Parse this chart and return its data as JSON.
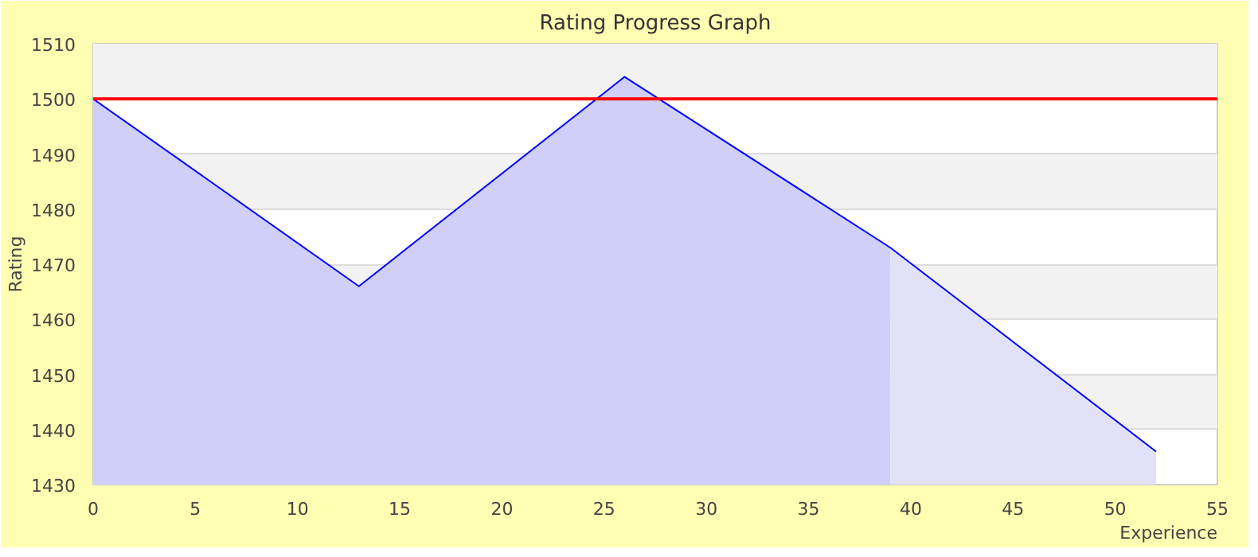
{
  "chart_data": {
    "type": "area",
    "title": "Rating Progress Graph",
    "xlabel": "Experience",
    "ylabel": "Rating",
    "series": [
      {
        "color": "#cfcffa",
        "x": [
          0,
          13,
          26,
          39
        ],
        "values": [
          1500,
          1466,
          1504,
          1473
        ]
      },
      {
        "type": "area",
        "color": "#e1e1fa",
        "x": [
          39,
          52
        ],
        "values": [
          1473,
          1436
        ]
      },
      {
        "type": "line",
        "color": "#0000ff",
        "x": [
          0,
          13,
          26,
          39,
          52
        ],
        "values": [
          1500,
          1466,
          1504,
          1473,
          1436
        ]
      }
    ],
    "xlim": [
      0,
      55
    ],
    "ylim": [
      1430,
      1510
    ],
    "xticks": [
      0,
      5,
      10,
      15,
      20,
      25,
      30,
      35,
      40,
      45,
      50,
      55
    ],
    "yticks": [
      1430,
      1440,
      1450,
      1460,
      1470,
      1480,
      1490,
      1500,
      1510
    ],
    "grid": "y",
    "ref_lines": [
      {
        "axis": "y",
        "value": 1500,
        "color": "#ff0000"
      }
    ]
  }
}
